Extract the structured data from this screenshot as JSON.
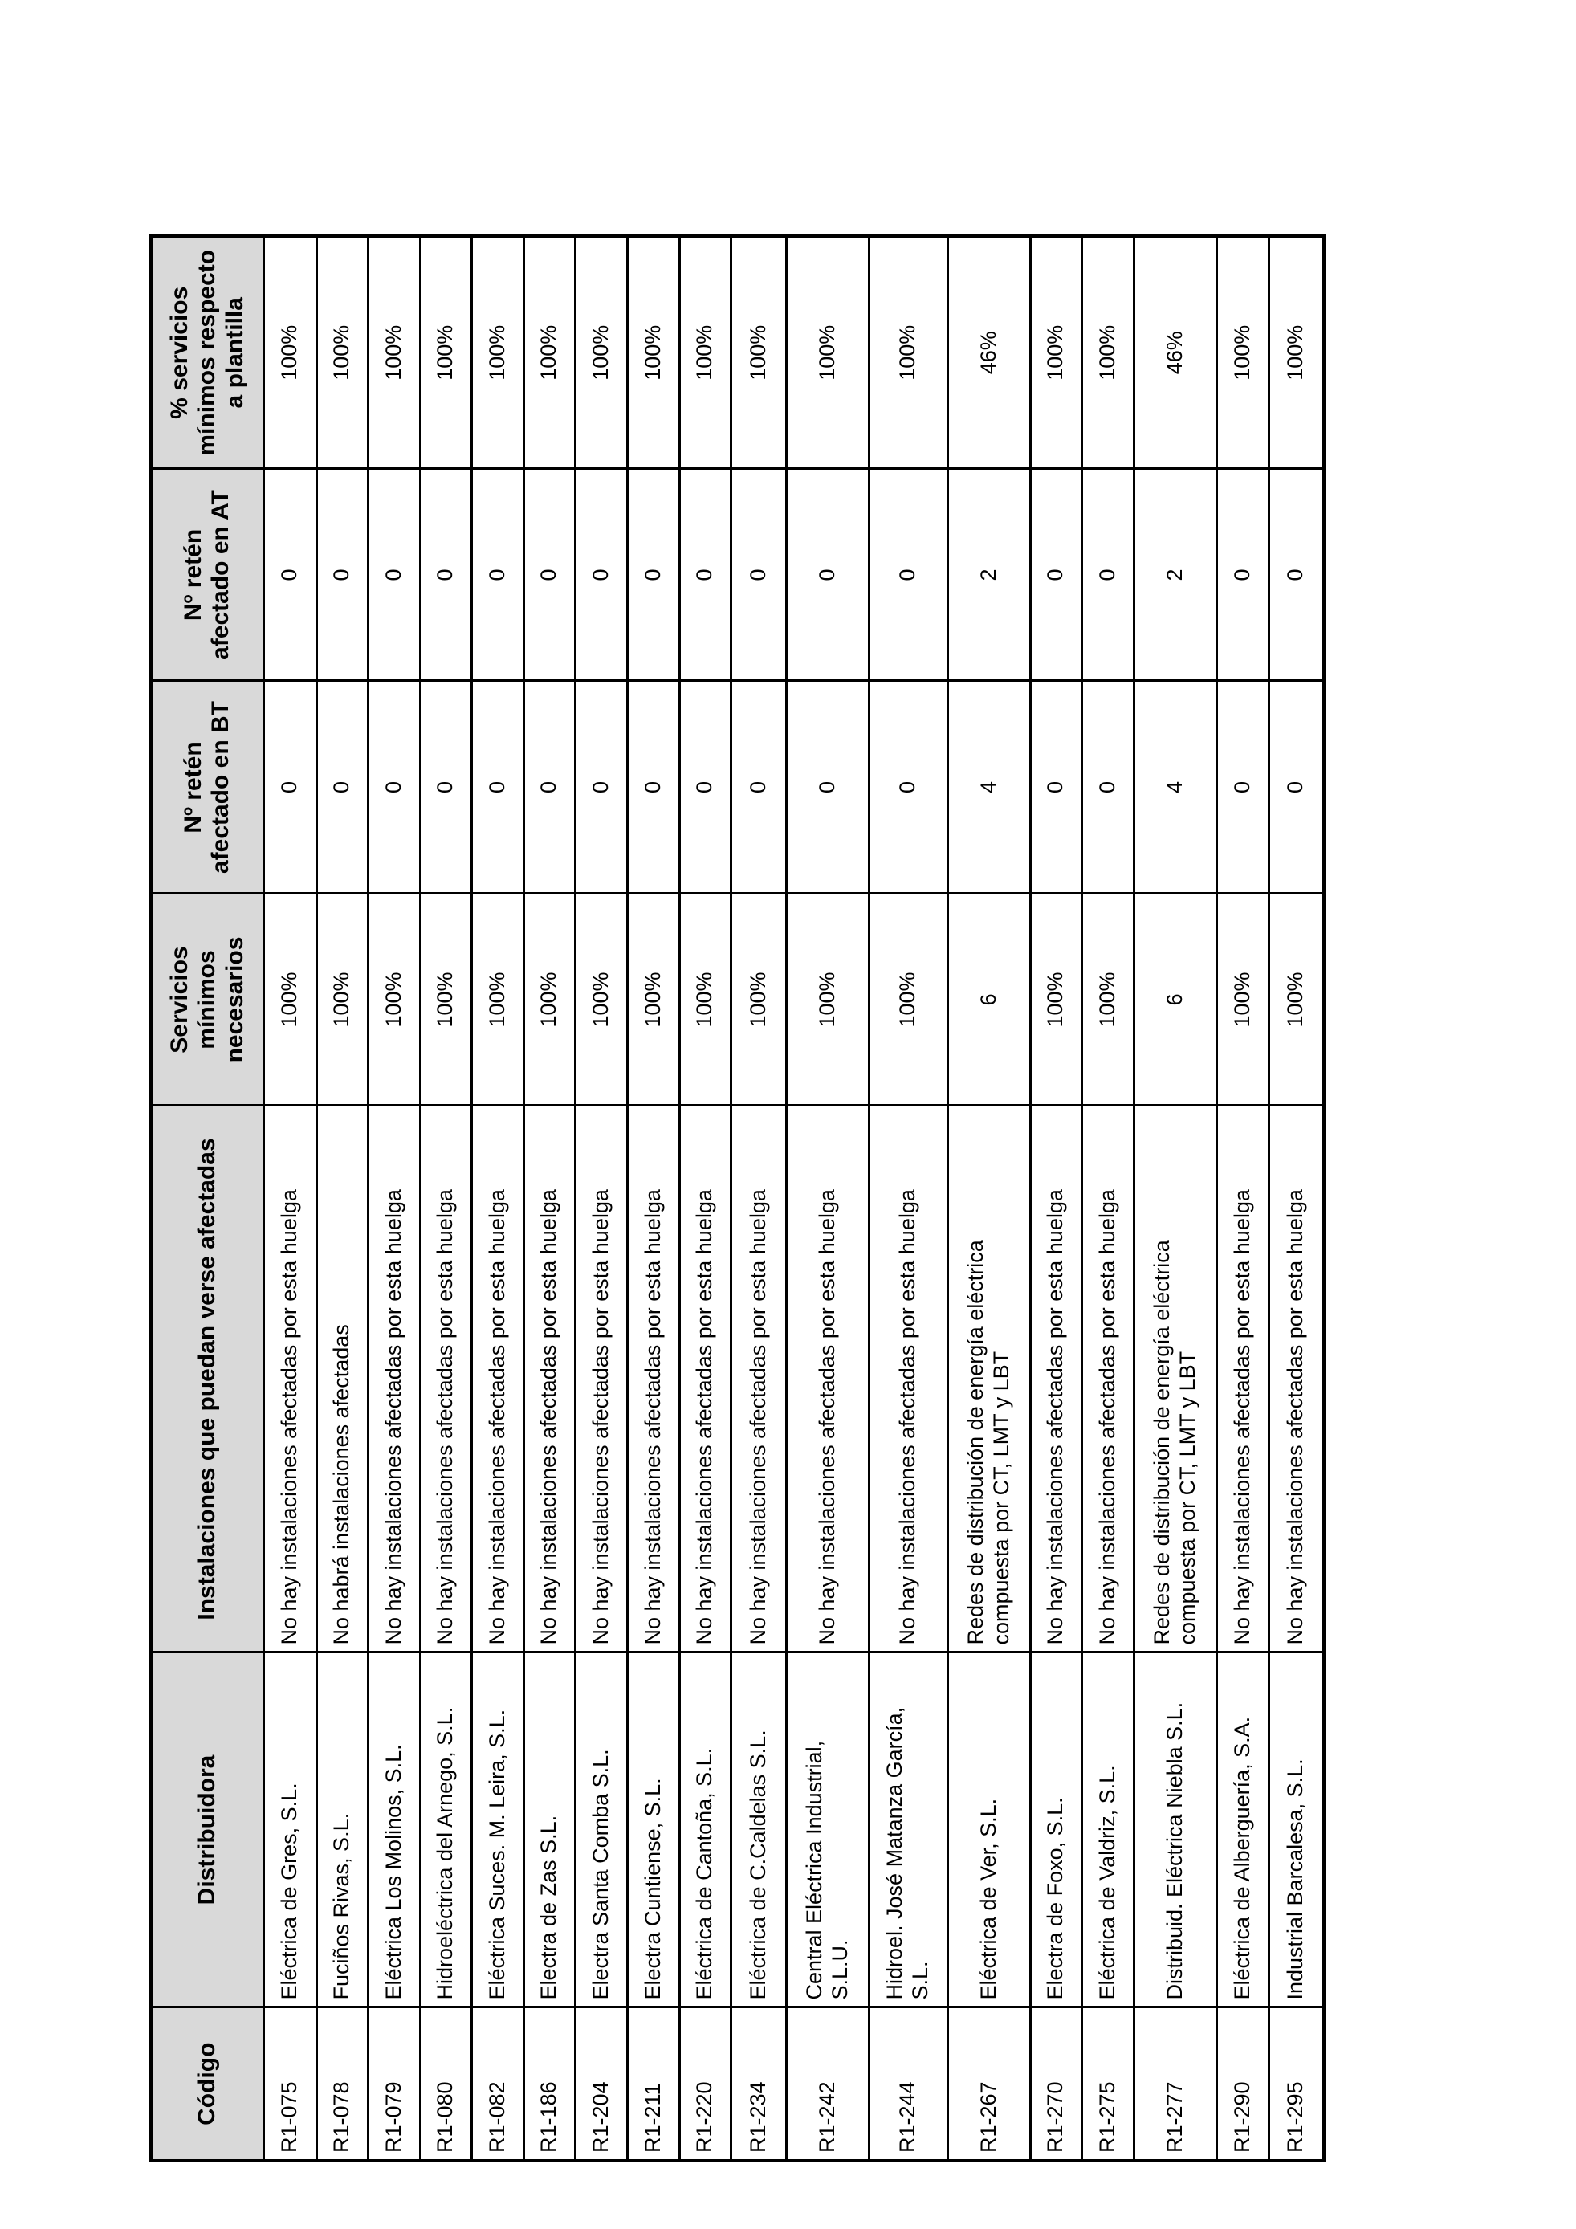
{
  "page": {
    "background_color": "#ffffff",
    "description": "Rotated (landscape) table of electricity distributors and minimum services during a strike"
  },
  "table": {
    "border_color": "#000000",
    "header_bg_color": "#d9d9d9",
    "text_color": "#000000",
    "headers": [
      "Código",
      "Distribuidora",
      "Instalaciones que puedan verse afectadas",
      "Servicios\nmínimos\nnecesarios",
      "Nº retén\nafectado en BT",
      "Nº retén\nafectado en AT",
      "% servicios\nmínimos respecto\na plantilla"
    ],
    "rows": [
      {
        "codigo": "R1-075",
        "distribuidora": "Eléctrica de Gres, S.L.",
        "instalaciones": "No hay instalaciones afectadas por esta huelga",
        "servicios_minimos": "100%",
        "reten_bt": "0",
        "reten_at": "0",
        "pct_plantilla": "100%"
      },
      {
        "codigo": "R1-078",
        "distribuidora": "Fuciños Rivas, S.L.",
        "instalaciones": "No habrá instalaciones afectadas",
        "servicios_minimos": "100%",
        "reten_bt": "0",
        "reten_at": "0",
        "pct_plantilla": "100%"
      },
      {
        "codigo": "R1-079",
        "distribuidora": "Eléctrica Los Molinos, S.L.",
        "instalaciones": "No hay instalaciones afectadas por esta huelga",
        "servicios_minimos": "100%",
        "reten_bt": "0",
        "reten_at": "0",
        "pct_plantilla": "100%"
      },
      {
        "codigo": "R1-080",
        "distribuidora": "Hidroeléctrica del Arnego, S.L.",
        "instalaciones": "No hay instalaciones afectadas por esta huelga",
        "servicios_minimos": "100%",
        "reten_bt": "0",
        "reten_at": "0",
        "pct_plantilla": "100%"
      },
      {
        "codigo": "R1-082",
        "distribuidora": "Eléctrica Suces. M. Leira, S.L.",
        "instalaciones": "No hay instalaciones afectadas por esta huelga",
        "servicios_minimos": "100%",
        "reten_bt": "0",
        "reten_at": "0",
        "pct_plantilla": "100%"
      },
      {
        "codigo": "R1-186",
        "distribuidora": "Electra de Zas S.L.",
        "instalaciones": "No hay instalaciones afectadas por esta huelga",
        "servicios_minimos": "100%",
        "reten_bt": "0",
        "reten_at": "0",
        "pct_plantilla": "100%"
      },
      {
        "codigo": "R1-204",
        "distribuidora": "Electra Santa Comba S.L.",
        "instalaciones": "No hay instalaciones afectadas por esta huelga",
        "servicios_minimos": "100%",
        "reten_bt": "0",
        "reten_at": "0",
        "pct_plantilla": "100%"
      },
      {
        "codigo": "R1-211",
        "distribuidora": "Electra Cuntiense, S.L.",
        "instalaciones": "No hay instalaciones afectadas por esta huelga",
        "servicios_minimos": "100%",
        "reten_bt": "0",
        "reten_at": "0",
        "pct_plantilla": "100%"
      },
      {
        "codigo": "R1-220",
        "distribuidora": "Eléctrica de Cantoña, S.L.",
        "instalaciones": "No hay instalaciones afectadas por esta huelga",
        "servicios_minimos": "100%",
        "reten_bt": "0",
        "reten_at": "0",
        "pct_plantilla": "100%"
      },
      {
        "codigo": "R1-234",
        "distribuidora": "Eléctrica de C.Caldelas S.L.",
        "instalaciones": "No hay instalaciones afectadas por esta huelga",
        "servicios_minimos": "100%",
        "reten_bt": "0",
        "reten_at": "0",
        "pct_plantilla": "100%"
      },
      {
        "codigo": "R1-242",
        "distribuidora": "Central Eléctrica Industrial,\nS.L.U.",
        "instalaciones": "No hay instalaciones afectadas por esta huelga",
        "servicios_minimos": "100%",
        "reten_bt": "0",
        "reten_at": "0",
        "pct_plantilla": "100%"
      },
      {
        "codigo": "R1-244",
        "distribuidora": "Hidroel. José Matanza García,\nS.L.",
        "instalaciones": "No hay instalaciones afectadas por esta huelga",
        "servicios_minimos": "100%",
        "reten_bt": "0",
        "reten_at": "0",
        "pct_plantilla": "100%"
      },
      {
        "codigo": "R1-267",
        "distribuidora": "Eléctrica de Ver, S.L.",
        "instalaciones": "Redes de distribución de energía eléctrica\ncompuesta por CT, LMT y LBT",
        "servicios_minimos": "6",
        "reten_bt": "4",
        "reten_at": "2",
        "pct_plantilla": "46%"
      },
      {
        "codigo": "R1-270",
        "distribuidora": "Electra de Foxo, S.L.",
        "instalaciones": "No hay instalaciones afectadas por esta huelga",
        "servicios_minimos": "100%",
        "reten_bt": "0",
        "reten_at": "0",
        "pct_plantilla": "100%"
      },
      {
        "codigo": "R1-275",
        "distribuidora": "Eléctrica de Valdriz, S.L.",
        "instalaciones": "No hay instalaciones afectadas por esta huelga",
        "servicios_minimos": "100%",
        "reten_bt": "0",
        "reten_at": "0",
        "pct_plantilla": "100%"
      },
      {
        "codigo": "R1-277",
        "distribuidora": "Distribuid. Eléctrica Niebla S.L.",
        "instalaciones": "Redes de distribución de energía eléctrica\ncompuesta por CT, LMT y LBT",
        "servicios_minimos": "6",
        "reten_bt": "4",
        "reten_at": "2",
        "pct_plantilla": "46%"
      },
      {
        "codigo": "R1-290",
        "distribuidora": "Eléctrica de Alberguería, S.A.",
        "instalaciones": "No hay instalaciones afectadas por esta huelga",
        "servicios_minimos": "100%",
        "reten_bt": "0",
        "reten_at": "0",
        "pct_plantilla": "100%"
      },
      {
        "codigo": "R1-295",
        "distribuidora": "Industrial Barcalesa, S.L.",
        "instalaciones": "No hay instalaciones afectadas por esta huelga",
        "servicios_minimos": "100%",
        "reten_bt": "0",
        "reten_at": "0",
        "pct_plantilla": "100%"
      }
    ]
  }
}
